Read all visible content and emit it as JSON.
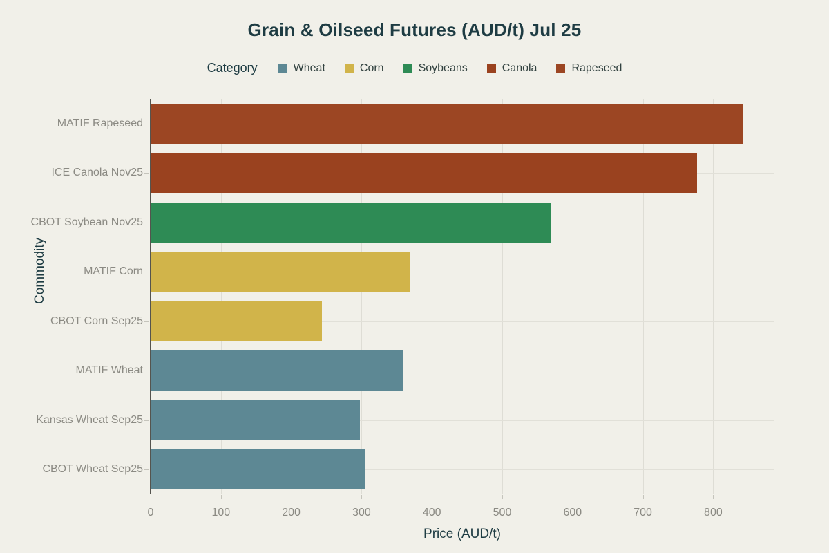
{
  "title": "Grain & Oilseed Futures (AUD/t) Jul 25",
  "legend": {
    "title": "Category",
    "items": [
      {
        "label": "Wheat",
        "color": "#5d8894"
      },
      {
        "label": "Corn",
        "color": "#d1b44a"
      },
      {
        "label": "Soybeans",
        "color": "#2e8b55"
      },
      {
        "label": "Canola",
        "color": "#9a421f"
      },
      {
        "label": "Rapeseed",
        "color": "#9c4623"
      }
    ]
  },
  "chart_data": {
    "type": "bar",
    "orientation": "horizontal",
    "title": "Grain & Oilseed Futures (AUD/t) Jul 25",
    "xlabel": "Price (AUD/t)",
    "ylabel": "Commodity",
    "categories": [
      "MATIF Rapeseed",
      "ICE Canola Nov25",
      "CBOT Soybean Nov25",
      "MATIF Corn",
      "CBOT Corn Sep25",
      "MATIF Wheat",
      "Kansas Wheat Sep25",
      "CBOT Wheat Sep25"
    ],
    "values": [
      842,
      777,
      570,
      368,
      244,
      358,
      298,
      304
    ],
    "bar_categories": [
      "Rapeseed",
      "Canola",
      "Soybeans",
      "Corn",
      "Corn",
      "Wheat",
      "Wheat",
      "Wheat"
    ],
    "xlim": [
      0,
      886
    ],
    "xticks": [
      0,
      100,
      200,
      300,
      400,
      500,
      600,
      700,
      800
    ],
    "grid": true,
    "legend_position": "top"
  },
  "colors": {
    "background": "#f1f0e9",
    "title_text": "#1e3c43",
    "axis_text": "#8b8a83",
    "gridline": "#deddd5",
    "axis_line": "#55544e"
  }
}
